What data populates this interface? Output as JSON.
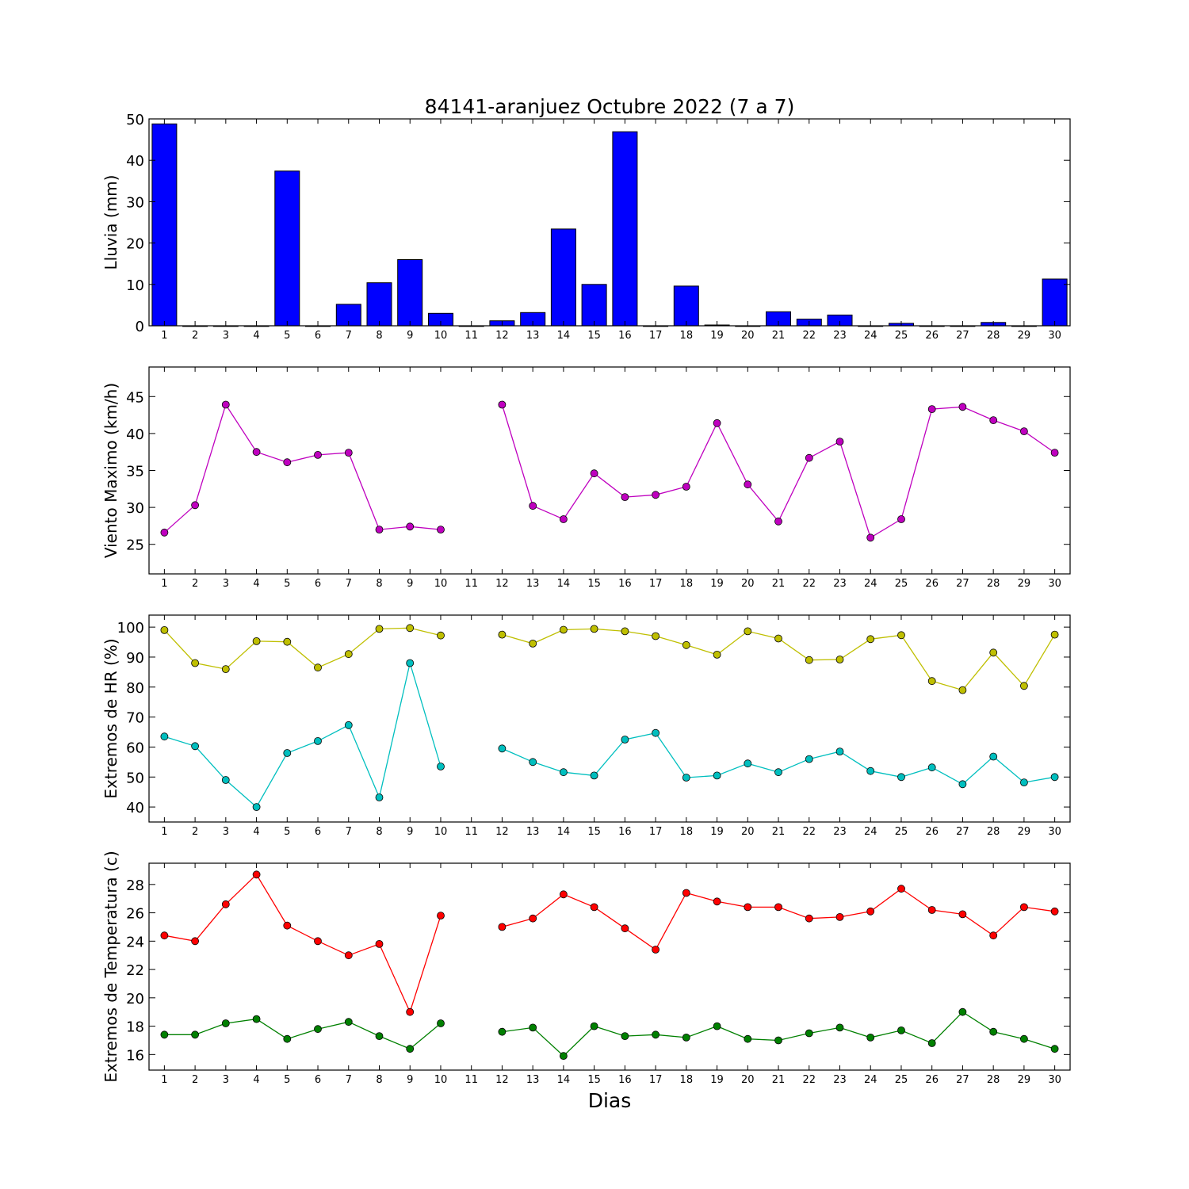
{
  "figure": {
    "title": "84141-aranjuez Octubre 2022  (7 a 7)",
    "xlabel": "Dias"
  },
  "colors": {
    "rain": "#0000ff",
    "wind": "#bf00bf",
    "hr_max": "#bfbf00",
    "hr_min": "#00bfbf",
    "temp_max": "#ff0000",
    "temp_min": "#008000"
  },
  "chart_data": [
    {
      "type": "bar",
      "ylabel": "Lluvia (mm)",
      "ylim": [
        0,
        50
      ],
      "yticks": [
        0,
        10,
        20,
        30,
        40,
        50
      ],
      "xlim": [
        0.5,
        30.5
      ],
      "categories": [
        "1",
        "2",
        "3",
        "4",
        "5",
        "6",
        "7",
        "8",
        "9",
        "10",
        "11",
        "12",
        "13",
        "14",
        "15",
        "16",
        "17",
        "18",
        "19",
        "20",
        "21",
        "22",
        "23",
        "24",
        "25",
        "26",
        "27",
        "28",
        "29",
        "30"
      ],
      "series": [
        {
          "values": [
            48.8,
            0,
            0,
            0,
            37.4,
            0,
            5.2,
            10.4,
            16.0,
            3.0,
            0,
            1.2,
            3.2,
            23.4,
            10.0,
            46.9,
            0,
            9.6,
            0.2,
            0,
            3.4,
            1.6,
            2.6,
            0,
            0.6,
            0,
            0,
            0.8,
            0,
            11.3
          ],
          "color": "#0000ff"
        }
      ]
    },
    {
      "type": "line",
      "ylabel": "Viento Maximo (km/h)",
      "ylim": [
        21,
        49
      ],
      "yticks": [
        25,
        30,
        35,
        40,
        45
      ],
      "xlim": [
        0.5,
        30.5
      ],
      "x": [
        1,
        2,
        3,
        4,
        5,
        6,
        7,
        8,
        9,
        10,
        11,
        12,
        13,
        14,
        15,
        16,
        17,
        18,
        19,
        20,
        21,
        22,
        23,
        24,
        25,
        26,
        27,
        28,
        29,
        30
      ],
      "xticks": [
        "1",
        "2",
        "3",
        "4",
        "5",
        "6",
        "7",
        "8",
        "9",
        "10",
        "11",
        "12",
        "13",
        "14",
        "15",
        "16",
        "17",
        "18",
        "19",
        "20",
        "21",
        "22",
        "23",
        "24",
        "25",
        "26",
        "27",
        "28",
        "29",
        "30"
      ],
      "series": [
        {
          "values": [
            26.6,
            30.3,
            43.9,
            37.5,
            36.1,
            37.1,
            37.4,
            27.0,
            27.4,
            27.0,
            null,
            43.9,
            30.2,
            28.4,
            34.6,
            31.4,
            31.7,
            32.8,
            41.4,
            33.1,
            28.1,
            36.7,
            38.9,
            25.9,
            28.4,
            43.3,
            43.6,
            41.8,
            40.3,
            37.4
          ],
          "color": "#bf00bf"
        }
      ]
    },
    {
      "type": "line",
      "ylabel": "Extremos de HR (%)",
      "ylim": [
        35,
        104
      ],
      "yticks": [
        40,
        50,
        60,
        70,
        80,
        90,
        100
      ],
      "xlim": [
        0.5,
        30.5
      ],
      "x": [
        1,
        2,
        3,
        4,
        5,
        6,
        7,
        8,
        9,
        10,
        11,
        12,
        13,
        14,
        15,
        16,
        17,
        18,
        19,
        20,
        21,
        22,
        23,
        24,
        25,
        26,
        27,
        28,
        29,
        30
      ],
      "xticks": [
        "1",
        "2",
        "3",
        "4",
        "5",
        "6",
        "7",
        "8",
        "9",
        "10",
        "11",
        "12",
        "13",
        "14",
        "15",
        "16",
        "17",
        "18",
        "19",
        "20",
        "21",
        "22",
        "23",
        "24",
        "25",
        "26",
        "27",
        "28",
        "29",
        "30"
      ],
      "series": [
        {
          "values": [
            99,
            88,
            86,
            95.3,
            95.1,
            86.5,
            91,
            99.4,
            99.7,
            97.2,
            null,
            97.5,
            94.5,
            99.1,
            99.4,
            98.6,
            97,
            94,
            90.8,
            98.6,
            96.2,
            89,
            89.2,
            96,
            97.3,
            82,
            79,
            91.5,
            80.4,
            97.5
          ],
          "color": "#bfbf00"
        },
        {
          "values": [
            63.5,
            60.3,
            49,
            40,
            58,
            62,
            67.3,
            43.2,
            88,
            53.5,
            null,
            59.5,
            55,
            51.6,
            50.5,
            62.5,
            64.7,
            49.8,
            50.5,
            54.5,
            51.6,
            56,
            58.5,
            52,
            50,
            53.2,
            47.6,
            56.8,
            48.2,
            50
          ],
          "color": "#00bfbf"
        }
      ]
    },
    {
      "type": "line",
      "ylabel": "Extremos de Temperatura (c)",
      "xlabel": "Dias",
      "ylim": [
        14.9,
        29.5
      ],
      "yticks": [
        16,
        18,
        20,
        22,
        24,
        26,
        28
      ],
      "xlim": [
        0.5,
        30.5
      ],
      "x": [
        1,
        2,
        3,
        4,
        5,
        6,
        7,
        8,
        9,
        10,
        11,
        12,
        13,
        14,
        15,
        16,
        17,
        18,
        19,
        20,
        21,
        22,
        23,
        24,
        25,
        26,
        27,
        28,
        29,
        30
      ],
      "xticks": [
        "1",
        "2",
        "3",
        "4",
        "5",
        "6",
        "7",
        "8",
        "9",
        "10",
        "11",
        "12",
        "13",
        "14",
        "15",
        "16",
        "17",
        "18",
        "19",
        "20",
        "21",
        "22",
        "23",
        "24",
        "25",
        "26",
        "27",
        "28",
        "29",
        "30"
      ],
      "series": [
        {
          "values": [
            24.4,
            24.0,
            26.6,
            28.7,
            25.1,
            24.0,
            23.0,
            23.8,
            19.0,
            25.8,
            null,
            25.0,
            25.6,
            27.3,
            26.4,
            24.9,
            23.4,
            27.4,
            26.8,
            26.4,
            26.4,
            25.6,
            25.7,
            26.1,
            27.7,
            26.2,
            25.9,
            24.4,
            26.4,
            26.1
          ],
          "color": "#ff0000"
        },
        {
          "values": [
            17.4,
            17.4,
            18.2,
            18.5,
            17.1,
            17.8,
            18.3,
            17.3,
            16.4,
            18.2,
            null,
            17.6,
            17.9,
            15.9,
            18.0,
            17.3,
            17.4,
            17.2,
            18.0,
            17.1,
            17.0,
            17.5,
            17.9,
            17.2,
            17.7,
            16.8,
            19.0,
            17.6,
            17.1,
            16.4
          ],
          "color": "#008000"
        }
      ]
    }
  ]
}
